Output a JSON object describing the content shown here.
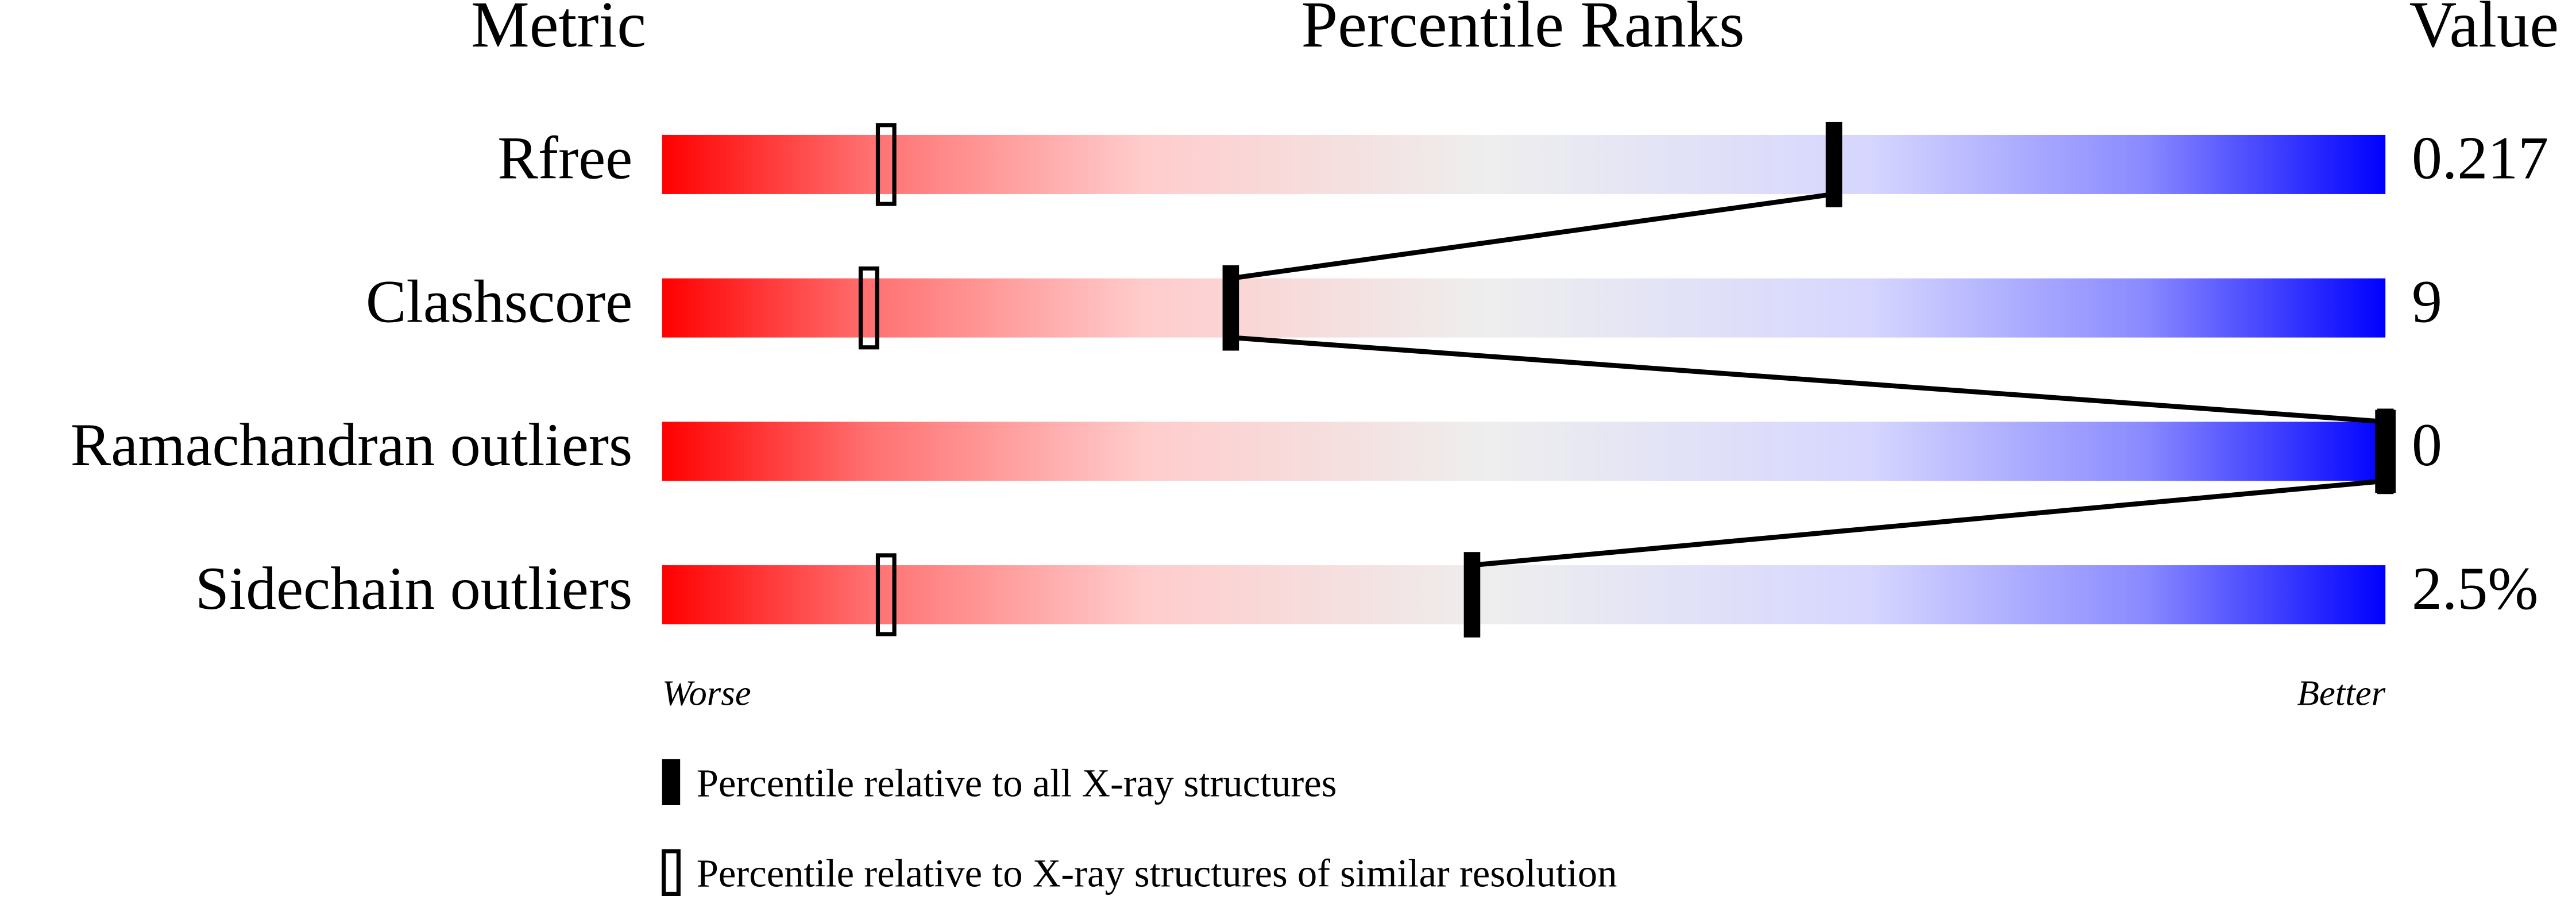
{
  "chart_data": {
    "type": "percentile-slider",
    "column_headers": [
      "Metric",
      "Percentile Ranks",
      "Value"
    ],
    "categories": [
      "Rfree",
      "Clashscore",
      "Ramachandran outliers",
      "Sidechain outliers"
    ],
    "metric_values": [
      0.217,
      9,
      0,
      2.5
    ],
    "metric_value_labels": [
      null,
      null,
      null,
      "2.5%"
    ],
    "xlim": [
      0,
      100
    ],
    "worse_label": "Worse",
    "better_label": "Better",
    "series": [
      {
        "name": "Percentile relative to all X-ray structures",
        "color": "#000000",
        "filled": true,
        "values": [
          68,
          33,
          100,
          47
        ]
      },
      {
        "name": "Percentile relative to X-ray structures of similar resolution",
        "color": "#000000",
        "filled": false,
        "values": [
          13,
          12,
          100,
          13
        ]
      }
    ]
  }
}
